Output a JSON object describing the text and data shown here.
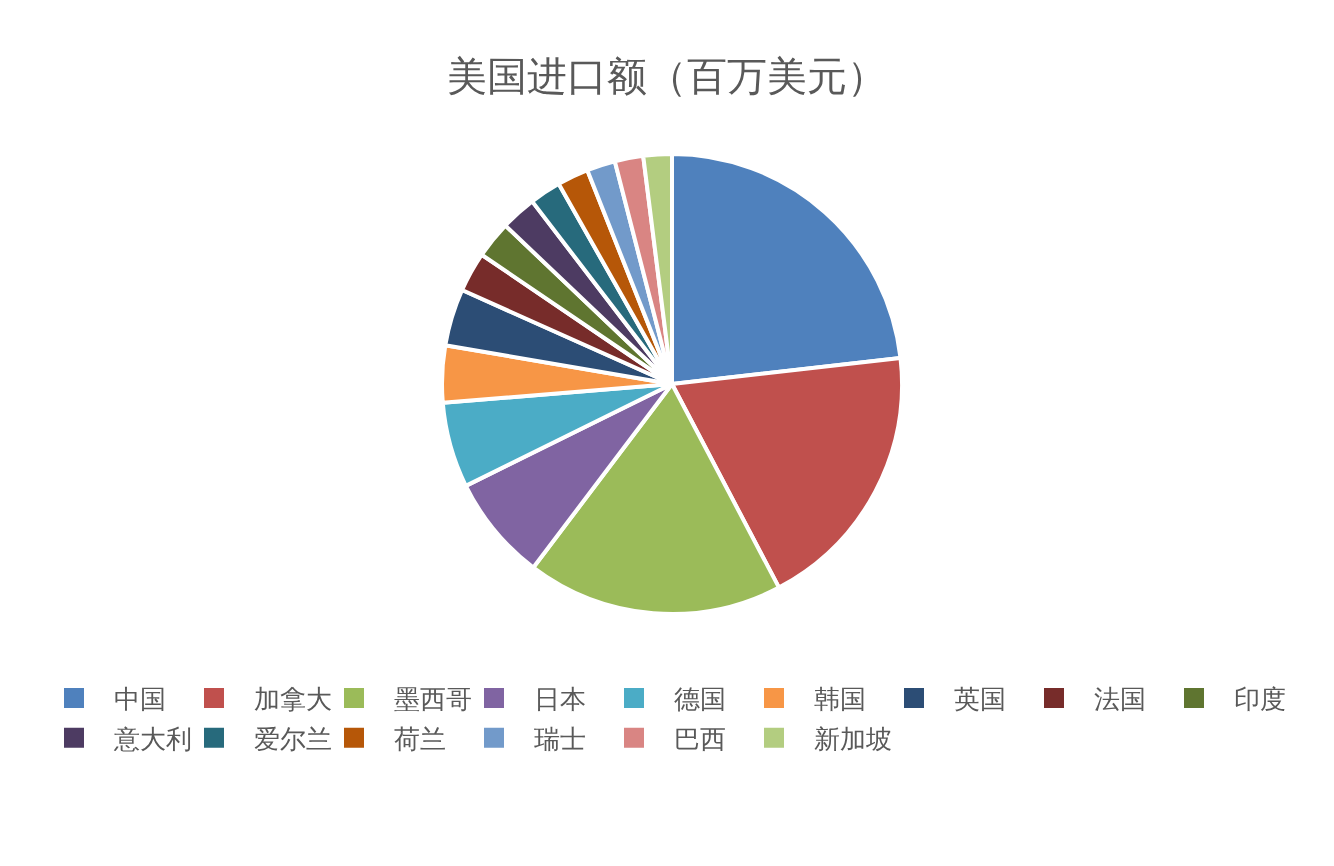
{
  "chart_data": {
    "type": "pie",
    "title": "美国进口额（百万美元）",
    "categories": [
      "中国",
      "加拿大",
      "墨西哥",
      "日本",
      "德国",
      "韩国",
      "英国",
      "法国",
      "印度",
      "意大利",
      "爱尔兰",
      "荷兰",
      "瑞士",
      "巴西",
      "新加坡"
    ],
    "values": [
      23.2,
      19.1,
      18.0,
      7.4,
      6.0,
      4.0,
      4.0,
      2.8,
      2.6,
      2.5,
      2.2,
      2.2,
      2.0,
      2.0,
      2.0
    ],
    "colors": [
      "#4f81bd",
      "#c0504d",
      "#9bbb59",
      "#8064a2",
      "#4bacc6",
      "#f79646",
      "#2c4d75",
      "#772c2a",
      "#5f7530",
      "#4d3b62",
      "#276a7c",
      "#b65708",
      "#729aca",
      "#d98583",
      "#b3cd80"
    ],
    "legend": "bottom"
  }
}
